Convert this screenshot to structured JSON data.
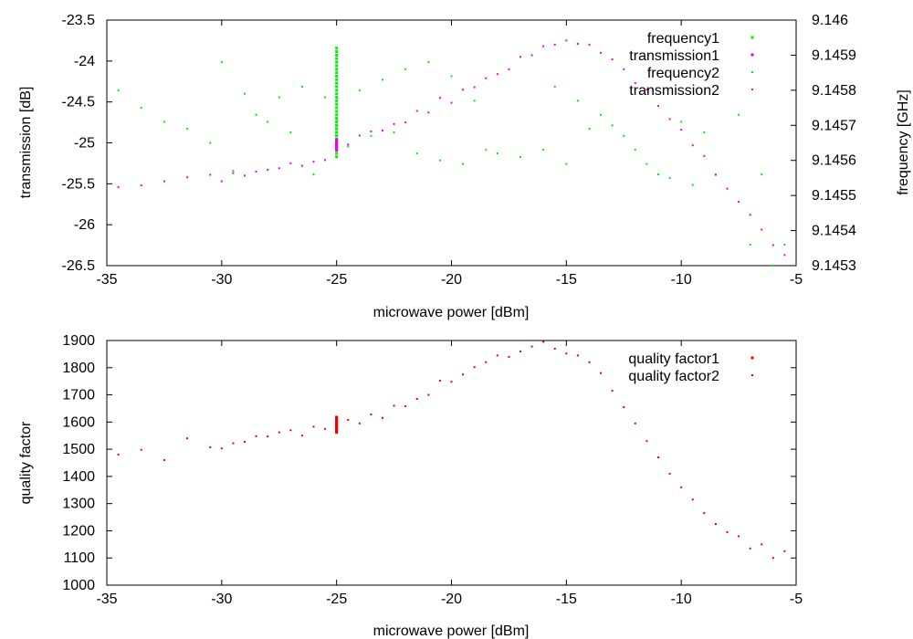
{
  "chart_data": [
    {
      "type": "scatter",
      "xlabel": "microwave power [dBm]",
      "ylabel": "transmission [dB]",
      "y2label": "frequency [GHz]",
      "xlim": [
        -35,
        -5
      ],
      "ylim": [
        -26.5,
        -23.5
      ],
      "y2lim": [
        9.1453,
        9.146
      ],
      "xticks": [
        "-35",
        "-30",
        "-25",
        "-20",
        "-15",
        "-10",
        "-5"
      ],
      "yticks": [
        "-26.5",
        "-26",
        "-25.5",
        "-25",
        "-24.5",
        "-24",
        "-23.5"
      ],
      "y2ticks": [
        "9.1453",
        "9.1454",
        "9.1455",
        "9.1456",
        "9.1457",
        "9.1458",
        "9.1459",
        "9.146"
      ],
      "legend_position": "top-right",
      "series": [
        {
          "name": "frequency1",
          "axis": "y2",
          "color": "#00ee00",
          "x": [
            -25,
            -25,
            -25,
            -25,
            -25,
            -25,
            -25,
            -25,
            -25,
            -25,
            -25,
            -25,
            -25,
            -25,
            -25,
            -25,
            -25,
            -25,
            -25,
            -25,
            -25,
            -25,
            -25,
            -25,
            -25,
            -25,
            -25,
            -25,
            -25,
            -25,
            -25,
            -25,
            -25,
            -25,
            -25,
            -25,
            -25,
            -25,
            -25,
            -25
          ],
          "y": [
            9.14563,
            9.14564,
            9.14565,
            9.14566,
            9.14567,
            9.14568,
            9.14569,
            9.1457,
            9.14571,
            9.14572,
            9.14573,
            9.14574,
            9.14575,
            9.14576,
            9.14577,
            9.14578,
            9.14579,
            9.1458,
            9.14581,
            9.14582,
            9.14583,
            9.14584,
            9.14585,
            9.14586,
            9.14587,
            9.14588,
            9.14589,
            9.1459,
            9.14561,
            9.14562,
            9.14563,
            9.14564,
            9.14565,
            9.14566,
            9.14567,
            9.14568,
            9.14569,
            9.1457,
            9.14591,
            9.14592
          ]
        },
        {
          "name": "transmission1",
          "axis": "y",
          "color": "#ee00ee",
          "x": [
            -25,
            -25,
            -25,
            -25,
            -25,
            -25,
            -25,
            -25,
            -25
          ],
          "y": [
            -24.96,
            -24.99,
            -25.01,
            -25.03,
            -25.05,
            -25.07,
            -25.09,
            -24.98,
            -25.04
          ]
        },
        {
          "name": "frequency2",
          "axis": "y2",
          "color": "#00ee00",
          "x": [
            -34.5,
            -33.5,
            -32.5,
            -31.5,
            -30.5,
            -30,
            -29.5,
            -29,
            -28.5,
            -28,
            -27.5,
            -27,
            -26.5,
            -26,
            -25.5,
            -24.5,
            -24,
            -23.5,
            -23,
            -22.5,
            -22,
            -21.5,
            -21,
            -20.5,
            -20,
            -19.5,
            -19,
            -18.5,
            -18,
            -17,
            -16,
            -15.5,
            -15,
            -14.5,
            -14,
            -13.5,
            -13,
            -12.5,
            -12,
            -11.5,
            -11,
            -10.5,
            -10,
            -9.5,
            -9,
            -8.5,
            -7.5,
            -7,
            -6.5,
            -6,
            -5.5
          ],
          "y": [
            9.1458,
            9.14575,
            9.14571,
            9.14569,
            9.14565,
            9.14588,
            9.14557,
            9.14579,
            9.14573,
            9.14571,
            9.14578,
            9.14568,
            9.14581,
            9.14556,
            9.14578,
            9.14564,
            9.1458,
            9.14567,
            9.14583,
            9.14568,
            9.14586,
            9.14562,
            9.14588,
            9.1456,
            9.14584,
            9.14559,
            9.14577,
            9.14563,
            9.14562,
            9.14561,
            9.14563,
            9.14581,
            9.14559,
            9.14577,
            9.14569,
            9.14573,
            9.1457,
            9.14567,
            9.14563,
            9.14559,
            9.14556,
            9.14555,
            9.14571,
            9.14553,
            9.14568,
            9.14556,
            9.14573,
            9.14536,
            9.14556,
            9.1453,
            9.14536
          ]
        },
        {
          "name": "transmission2",
          "axis": "y",
          "color": "#ee00ee",
          "x": [
            -34.5,
            -33.5,
            -32.5,
            -31.5,
            -30.5,
            -30,
            -29.5,
            -29,
            -28.5,
            -28,
            -27.5,
            -27,
            -26.5,
            -26,
            -25.5,
            -24.5,
            -24,
            -23.5,
            -23,
            -22.5,
            -22,
            -21.5,
            -21,
            -20.5,
            -20,
            -19.5,
            -19,
            -18.5,
            -18,
            -17.5,
            -17,
            -16.5,
            -16,
            -15.5,
            -15,
            -14.5,
            -14,
            -13.5,
            -13,
            -12.5,
            -12,
            -11.5,
            -11,
            -10.5,
            -10,
            -9.5,
            -9,
            -8.5,
            -8,
            -7.5,
            -7,
            -6.5,
            -6,
            -5.5
          ],
          "y": [
            -25.54,
            -25.52,
            -25.47,
            -25.42,
            -25.39,
            -25.47,
            -25.37,
            -25.4,
            -25.35,
            -25.33,
            -25.31,
            -25.25,
            -25.28,
            -25.23,
            -25.21,
            -25.02,
            -24.91,
            -24.86,
            -24.85,
            -24.77,
            -24.75,
            -24.61,
            -24.63,
            -24.45,
            -24.51,
            -24.35,
            -24.32,
            -24.21,
            -24.16,
            -24.1,
            -23.95,
            -23.93,
            -23.82,
            -23.8,
            -23.75,
            -23.79,
            -23.8,
            -23.9,
            -23.98,
            -24.1,
            -24.27,
            -24.35,
            -24.55,
            -24.71,
            -24.84,
            -25.03,
            -25.16,
            -25.39,
            -25.56,
            -25.72,
            -25.88,
            -26.06,
            -26.25,
            -26.37
          ]
        }
      ]
    },
    {
      "type": "scatter",
      "xlabel": "microwave power [dBm]",
      "ylabel": "quality factor",
      "xlim": [
        -35,
        -5
      ],
      "ylim": [
        1000,
        1900
      ],
      "xticks": [
        "-35",
        "-30",
        "-25",
        "-20",
        "-15",
        "-10",
        "-5"
      ],
      "yticks": [
        "1000",
        "1100",
        "1200",
        "1300",
        "1400",
        "1500",
        "1600",
        "1700",
        "1800",
        "1900"
      ],
      "legend_position": "top-right",
      "series": [
        {
          "name": "quality factor1",
          "color": "#ee0000",
          "x": [
            -25,
            -25,
            -25,
            -25,
            -25,
            -25,
            -25,
            -25,
            -25,
            -25,
            -25,
            -25,
            -25,
            -25,
            -25
          ],
          "y": [
            1562,
            1566,
            1570,
            1574,
            1578,
            1582,
            1586,
            1590,
            1594,
            1598,
            1602,
            1606,
            1610,
            1614,
            1618
          ]
        },
        {
          "name": "quality factor2",
          "color": "#ee0000",
          "x": [
            -34.5,
            -33.5,
            -32.5,
            -31.5,
            -30.5,
            -30,
            -29.5,
            -29,
            -28.5,
            -28,
            -27.5,
            -27,
            -26.5,
            -26,
            -25.5,
            -24.5,
            -24,
            -23.5,
            -23,
            -22.5,
            -22,
            -21.5,
            -21,
            -20.5,
            -20,
            -19.5,
            -19,
            -18.5,
            -18,
            -17.5,
            -17,
            -16.5,
            -16,
            -15.5,
            -15,
            -14.5,
            -14,
            -13.5,
            -13,
            -12.5,
            -12,
            -11.5,
            -11,
            -10.5,
            -10,
            -9.5,
            -9,
            -8.5,
            -8,
            -7.5,
            -7,
            -6.5,
            -6,
            -5.5
          ],
          "y": [
            1480,
            1498,
            1460,
            1540,
            1507,
            1503,
            1522,
            1527,
            1548,
            1547,
            1562,
            1570,
            1550,
            1583,
            1575,
            1608,
            1595,
            1628,
            1615,
            1660,
            1658,
            1685,
            1700,
            1752,
            1748,
            1775,
            1802,
            1820,
            1845,
            1840,
            1860,
            1878,
            1895,
            1870,
            1852,
            1845,
            1820,
            1780,
            1715,
            1655,
            1595,
            1530,
            1470,
            1410,
            1360,
            1315,
            1265,
            1225,
            1195,
            1180,
            1135,
            1150,
            1100,
            1125
          ]
        }
      ]
    }
  ]
}
